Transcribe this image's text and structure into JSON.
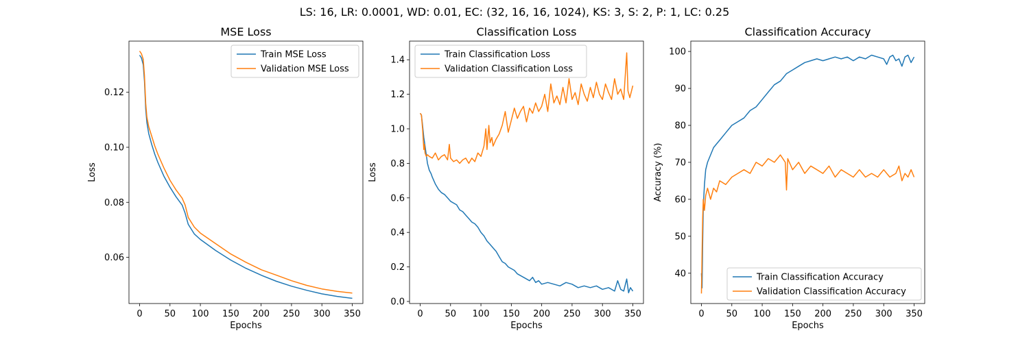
{
  "figure": {
    "suptitle": "LS: 16, LR: 0.0001, WD: 0.01, EC: (32, 16, 16, 1024), KS: 3, S: 2, P: 1, LC: 0.25"
  },
  "colors": {
    "train": "#1f77b4",
    "validation": "#ff7f0e"
  },
  "chart_data": [
    {
      "type": "line",
      "title": "MSE Loss",
      "xlabel": "Epochs",
      "ylabel": "Loss",
      "xlim": [
        -17.5,
        367.5
      ],
      "ylim": [
        0.0432,
        0.1386
      ],
      "xticks": [
        0,
        50,
        100,
        150,
        200,
        250,
        300,
        350
      ],
      "yticks": [
        0.06,
        0.08,
        0.1,
        0.12
      ],
      "ytick_labels": [
        "0.06",
        "0.08",
        "0.10",
        "0.12"
      ],
      "legend_position": "upper right",
      "grid": false,
      "series": [
        {
          "name": "Train MSE Loss",
          "color": "#1f77b4",
          "x": [
            0,
            3,
            6,
            8,
            10,
            12,
            15,
            20,
            25,
            30,
            40,
            50,
            60,
            70,
            75,
            80,
            90,
            100,
            125,
            150,
            175,
            200,
            225,
            250,
            275,
            300,
            325,
            350
          ],
          "y": [
            0.1335,
            0.1325,
            0.13,
            0.124,
            0.114,
            0.109,
            0.105,
            0.101,
            0.0975,
            0.0945,
            0.0895,
            0.0855,
            0.082,
            0.079,
            0.076,
            0.072,
            0.0685,
            0.0665,
            0.0625,
            0.059,
            0.056,
            0.0535,
            0.0513,
            0.0495,
            0.048,
            0.0467,
            0.0458,
            0.0451
          ]
        },
        {
          "name": "Validation MSE Loss",
          "color": "#ff7f0e",
          "x": [
            0,
            3,
            6,
            8,
            10,
            12,
            15,
            20,
            25,
            30,
            40,
            50,
            60,
            70,
            75,
            80,
            90,
            100,
            125,
            150,
            175,
            200,
            225,
            250,
            275,
            300,
            325,
            350
          ],
          "y": [
            0.135,
            0.134,
            0.132,
            0.126,
            0.116,
            0.111,
            0.1075,
            0.104,
            0.1005,
            0.0975,
            0.0925,
            0.088,
            0.0845,
            0.0815,
            0.079,
            0.0745,
            0.071,
            0.0688,
            0.065,
            0.0612,
            0.0582,
            0.0555,
            0.0535,
            0.0515,
            0.0498,
            0.0485,
            0.0476,
            0.047
          ]
        }
      ]
    },
    {
      "type": "line",
      "title": "Classification Loss",
      "xlabel": "Epochs",
      "ylabel": "Loss",
      "xlim": [
        -17.5,
        367.5
      ],
      "ylim": [
        -0.012,
        1.508
      ],
      "xticks": [
        0,
        50,
        100,
        150,
        200,
        250,
        300,
        350
      ],
      "yticks": [
        0.0,
        0.2,
        0.4,
        0.6,
        0.8,
        1.0,
        1.2,
        1.4
      ],
      "ytick_labels": [
        "0.0",
        "0.2",
        "0.4",
        "0.6",
        "0.8",
        "1.0",
        "1.2",
        "1.4"
      ],
      "legend_position": "upper left",
      "grid": false,
      "series": [
        {
          "name": "Train Classification Loss",
          "color": "#1f77b4",
          "x": [
            0,
            2,
            4,
            6,
            8,
            10,
            12,
            15,
            18,
            20,
            25,
            30,
            35,
            40,
            45,
            50,
            55,
            60,
            65,
            70,
            75,
            80,
            85,
            90,
            95,
            100,
            105,
            110,
            115,
            120,
            125,
            130,
            135,
            140,
            145,
            150,
            155,
            160,
            165,
            170,
            175,
            180,
            185,
            190,
            195,
            200,
            210,
            220,
            230,
            240,
            250,
            260,
            270,
            280,
            290,
            300,
            310,
            320,
            325,
            330,
            335,
            340,
            343,
            346,
            350
          ],
          "y": [
            1.09,
            1.08,
            1.02,
            0.95,
            0.9,
            0.85,
            0.8,
            0.76,
            0.74,
            0.72,
            0.68,
            0.65,
            0.63,
            0.62,
            0.6,
            0.58,
            0.57,
            0.56,
            0.53,
            0.52,
            0.5,
            0.48,
            0.46,
            0.45,
            0.43,
            0.4,
            0.38,
            0.35,
            0.33,
            0.31,
            0.29,
            0.26,
            0.23,
            0.22,
            0.2,
            0.19,
            0.18,
            0.16,
            0.15,
            0.14,
            0.13,
            0.12,
            0.14,
            0.11,
            0.12,
            0.1,
            0.11,
            0.1,
            0.09,
            0.11,
            0.1,
            0.08,
            0.09,
            0.08,
            0.09,
            0.07,
            0.08,
            0.06,
            0.12,
            0.07,
            0.06,
            0.13,
            0.05,
            0.08,
            0.06
          ]
        },
        {
          "name": "Validation Classification Loss",
          "color": "#ff7f0e",
          "x": [
            0,
            2,
            4,
            6,
            7,
            8,
            10,
            12,
            15,
            20,
            25,
            30,
            35,
            40,
            45,
            48,
            50,
            55,
            60,
            65,
            70,
            75,
            80,
            85,
            90,
            95,
            100,
            105,
            108,
            110,
            113,
            115,
            118,
            120,
            125,
            130,
            135,
            140,
            145,
            150,
            155,
            160,
            165,
            170,
            175,
            180,
            185,
            190,
            195,
            200,
            205,
            210,
            215,
            220,
            225,
            230,
            235,
            240,
            245,
            250,
            255,
            260,
            265,
            270,
            275,
            280,
            285,
            290,
            295,
            300,
            305,
            310,
            315,
            320,
            325,
            330,
            335,
            340,
            342,
            345,
            350
          ],
          "y": [
            1.09,
            1.08,
            1.0,
            0.88,
            0.91,
            0.86,
            0.84,
            0.85,
            0.84,
            0.83,
            0.86,
            0.82,
            0.84,
            0.85,
            0.82,
            0.91,
            0.83,
            0.81,
            0.82,
            0.8,
            0.82,
            0.83,
            0.8,
            0.83,
            0.81,
            0.86,
            0.84,
            0.9,
            1.0,
            0.88,
            1.02,
            0.92,
            0.95,
            0.9,
            0.94,
            0.97,
            1.02,
            1.1,
            0.98,
            1.05,
            1.12,
            1.06,
            1.1,
            1.13,
            1.04,
            1.12,
            1.09,
            1.15,
            1.1,
            1.13,
            1.2,
            1.1,
            1.26,
            1.15,
            1.19,
            1.14,
            1.24,
            1.15,
            1.29,
            1.17,
            1.21,
            1.14,
            1.26,
            1.2,
            1.16,
            1.24,
            1.18,
            1.27,
            1.2,
            1.17,
            1.26,
            1.21,
            1.17,
            1.29,
            1.2,
            1.23,
            1.17,
            1.44,
            1.22,
            1.18,
            1.25
          ]
        }
      ]
    },
    {
      "type": "line",
      "title": "Classification Accuracy",
      "xlabel": "Epochs",
      "ylabel": "Accuracy (%)",
      "xlim": [
        -17.5,
        367.5
      ],
      "ylim": [
        31.8,
        102.8
      ],
      "xticks": [
        0,
        50,
        100,
        150,
        200,
        250,
        300,
        350
      ],
      "yticks": [
        40,
        50,
        60,
        70,
        80,
        90,
        100
      ],
      "ytick_labels": [
        "40",
        "50",
        "60",
        "70",
        "80",
        "90",
        "100"
      ],
      "legend_position": "lower right",
      "grid": false,
      "series": [
        {
          "name": "Train Classification Accuracy",
          "color": "#1f77b4",
          "x": [
            0,
            1,
            2,
            3,
            5,
            7,
            10,
            15,
            20,
            25,
            30,
            40,
            50,
            60,
            70,
            80,
            90,
            100,
            110,
            120,
            130,
            140,
            150,
            160,
            170,
            180,
            190,
            200,
            210,
            220,
            230,
            240,
            250,
            260,
            270,
            280,
            290,
            300,
            305,
            310,
            315,
            320,
            325,
            330,
            335,
            340,
            345,
            350
          ],
          "y": [
            40,
            36,
            48,
            58,
            64,
            68,
            70,
            72,
            74,
            75,
            76,
            78,
            80,
            81,
            82,
            84,
            85,
            87,
            89,
            91,
            92,
            94,
            95,
            96,
            97,
            97.5,
            98,
            97.5,
            98,
            98.5,
            98,
            98.5,
            97.5,
            98.5,
            98,
            99,
            98.5,
            98,
            96.5,
            98.5,
            99,
            97.5,
            98,
            96,
            98.5,
            99,
            97,
            98.5
          ]
        },
        {
          "name": "Validation Classification Accuracy",
          "color": "#ff7f0e",
          "x": [
            0,
            1,
            2,
            3,
            5,
            7,
            10,
            15,
            20,
            25,
            30,
            40,
            50,
            60,
            70,
            80,
            90,
            100,
            110,
            120,
            130,
            138,
            140,
            142,
            150,
            160,
            170,
            180,
            190,
            200,
            210,
            220,
            230,
            240,
            250,
            260,
            270,
            280,
            290,
            300,
            310,
            320,
            325,
            330,
            335,
            340,
            345,
            350
          ],
          "y": [
            34.5,
            45,
            55,
            60,
            57,
            61,
            63,
            60,
            63,
            62,
            65,
            64,
            66,
            67,
            68,
            67,
            70,
            69,
            71,
            70,
            72,
            70,
            62.5,
            71,
            68,
            70,
            67,
            69,
            68,
            67,
            69,
            66,
            68,
            67,
            66,
            68,
            66,
            67,
            66,
            68,
            66,
            67,
            69,
            65,
            67,
            66,
            68,
            66
          ]
        }
      ]
    }
  ]
}
